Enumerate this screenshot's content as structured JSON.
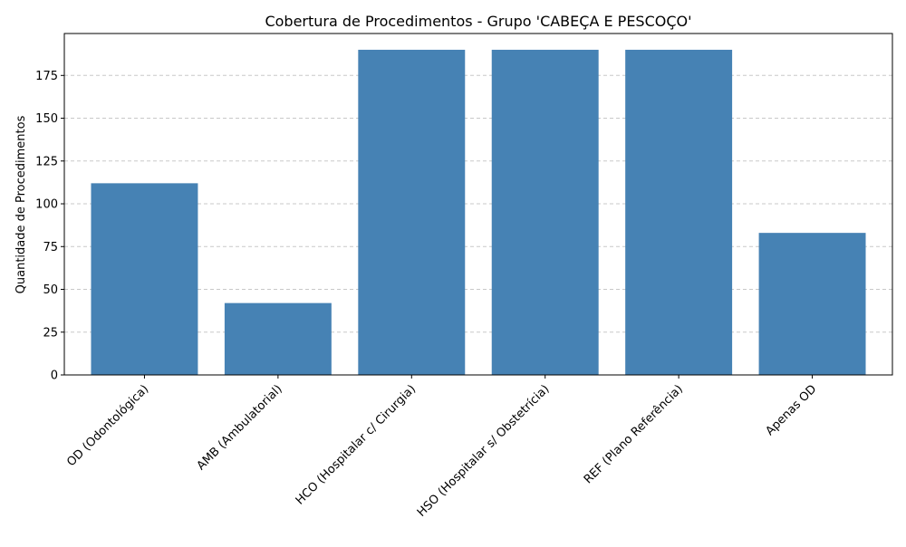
{
  "chart_data": {
    "type": "bar",
    "title": "Cobertura de Procedimentos - Grupo 'CABEÇA E PESCOÇO'",
    "xlabel": "",
    "ylabel": "Quantidade de Procedimentos",
    "categories": [
      "OD (Odontológica)",
      "AMB (Ambulatorial)",
      "HCO (Hospitalar c/ Cirurgia)",
      "HSO (Hospitalar s/ Obstetrícia)",
      "REF (Plano Referência)",
      "Apenas OD"
    ],
    "values": [
      112,
      42,
      190,
      190,
      190,
      83
    ],
    "ylim": [
      0,
      199.5
    ],
    "yticks": [
      0,
      25,
      50,
      75,
      100,
      125,
      150,
      175
    ],
    "grid": "y-dashed",
    "legend": "none",
    "colors": {
      "bar": "#4682b4",
      "grid": "#c8c8c8",
      "axis": "#000000"
    }
  }
}
